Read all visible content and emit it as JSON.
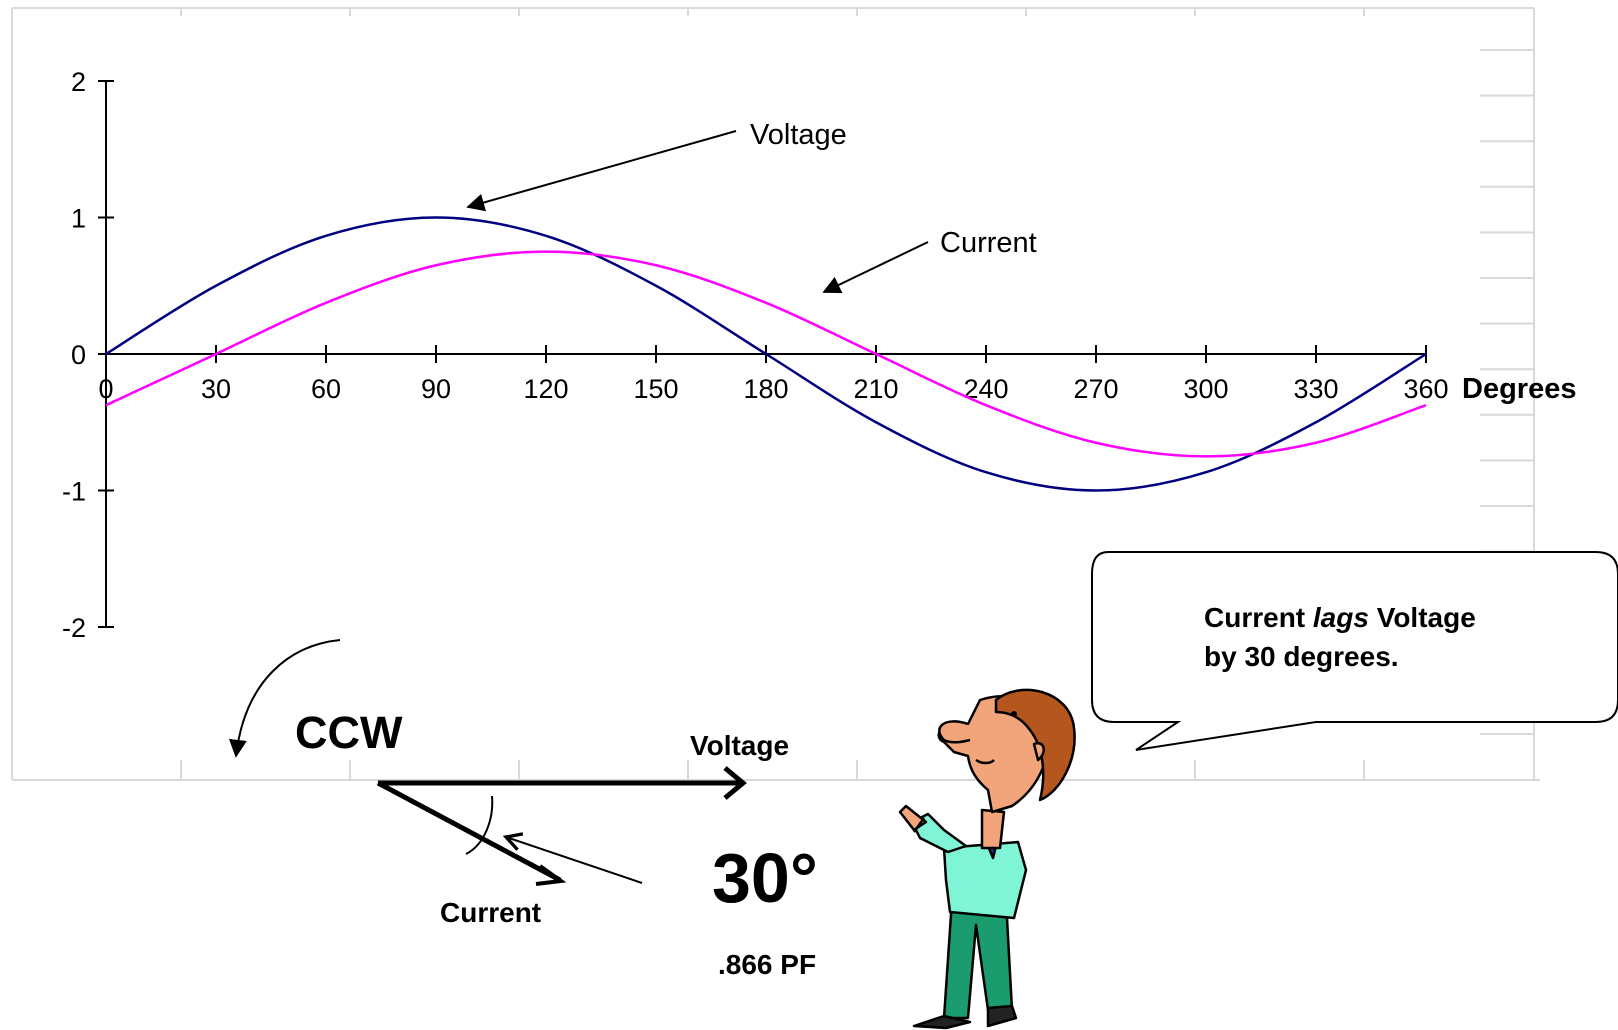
{
  "chart_data": {
    "type": "line",
    "x": [
      0,
      30,
      60,
      90,
      120,
      150,
      180,
      210,
      240,
      270,
      300,
      330,
      360
    ],
    "xlabel": "Degrees",
    "ylabel": "",
    "xlim": [
      0,
      360
    ],
    "ylim": [
      -2,
      2
    ],
    "x_ticks": [
      "0",
      "30",
      "60",
      "90",
      "120",
      "150",
      "180",
      "210",
      "240",
      "270",
      "300",
      "330",
      "360"
    ],
    "y_ticks": [
      "2",
      "1",
      "0",
      "-1",
      "-2"
    ],
    "y_tick_values": [
      2,
      1,
      0,
      -1,
      -2
    ],
    "series": [
      {
        "name": "Voltage",
        "color": "#000080",
        "values": [
          0,
          0.5,
          0.866,
          1,
          0.866,
          0.5,
          0,
          -0.5,
          -0.866,
          -1,
          -0.866,
          -0.5,
          0
        ]
      },
      {
        "name": "Current",
        "color": "#ff00ff",
        "values": [
          -0.375,
          0,
          0.375,
          0.65,
          0.75,
          0.65,
          0.375,
          0,
          -0.375,
          -0.65,
          -0.75,
          -0.65,
          -0.375
        ]
      }
    ],
    "annotations": [
      "Voltage",
      "Current"
    ]
  },
  "phasor": {
    "rotation_label": "CCW",
    "voltage_label": "Voltage",
    "current_label": "Current",
    "angle_label": "30°",
    "pf_label": ".866 PF"
  },
  "speech_bubble": {
    "line1_a": "Current ",
    "line1_b": "lags",
    "line1_c": " Voltage",
    "line2": "by 30 degrees."
  },
  "character": {
    "icon": "pointing-man-icon"
  }
}
